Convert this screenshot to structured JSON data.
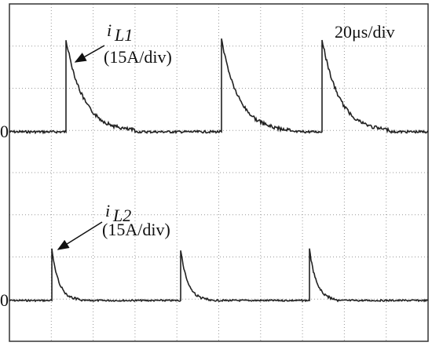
{
  "time_scale": "20μs/div",
  "traces": [
    {
      "symbol": "i",
      "subscript": "L1",
      "scale": "(15A/div)",
      "zero": "0"
    },
    {
      "symbol": "i",
      "subscript": "L2",
      "scale": "(15A/div)",
      "zero": "0"
    }
  ]
}
